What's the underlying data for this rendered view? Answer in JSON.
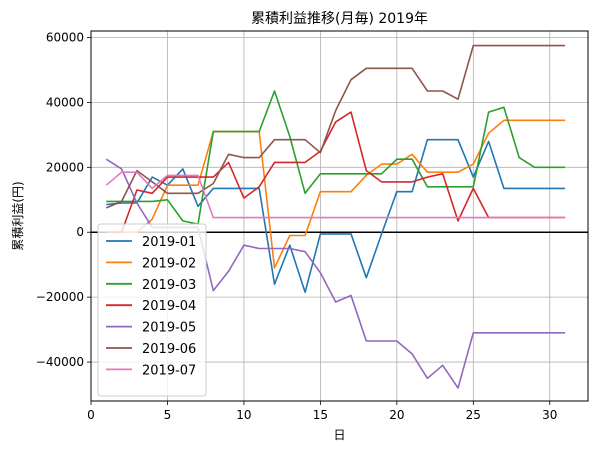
{
  "chart_data": {
    "type": "line",
    "title": "累積利益推移(月毎)  2019年",
    "xlabel": "日",
    "ylabel": "累積利益(円)",
    "xlim": [
      0,
      32.5
    ],
    "ylim": [
      -52000,
      62000
    ],
    "xticks": [
      0,
      5,
      10,
      15,
      20,
      25,
      30
    ],
    "yticks": [
      -40000,
      -20000,
      0,
      20000,
      40000,
      60000
    ],
    "ytick_labels": [
      "−40000",
      "−20000",
      "0",
      "20000",
      "40000",
      "60000"
    ],
    "grid": true,
    "zero_line": true,
    "legend_position": "lower-left",
    "x": [
      1,
      2,
      3,
      4,
      5,
      6,
      7,
      8,
      9,
      10,
      11,
      12,
      13,
      14,
      15,
      16,
      17,
      18,
      19,
      20,
      21,
      22,
      23,
      24,
      25,
      26,
      27,
      28,
      29,
      30,
      31
    ],
    "series": [
      {
        "name": "2019-01",
        "color": "#1f77b4",
        "values": [
          8500,
          9000,
          9000,
          17000,
          14500,
          19500,
          8000,
          13500,
          13500,
          13500,
          13500,
          -16000,
          -4000,
          -18500,
          -500,
          -500,
          -500,
          -14000,
          -500,
          12500,
          12500,
          28500,
          28500,
          28500,
          17000,
          28000,
          13500,
          13500,
          13500,
          13500,
          13500
        ]
      },
      {
        "name": "2019-02",
        "color": "#ff7f0e",
        "values": [
          0,
          0,
          0,
          4000,
          14500,
          14500,
          14500,
          31000,
          31000,
          31000,
          31000,
          -11000,
          -1000,
          -1000,
          12500,
          12500,
          12500,
          17500,
          21000,
          21000,
          24000,
          18500,
          18500,
          18500,
          21000,
          30500,
          34500,
          34500,
          34500,
          34500,
          34500
        ]
      },
      {
        "name": "2019-03",
        "color": "#2ca02c",
        "values": [
          9500,
          9500,
          9500,
          9500,
          10000,
          3500,
          2500,
          31000,
          31000,
          31000,
          31000,
          43500,
          29500,
          12000,
          18000,
          18000,
          18000,
          18000,
          18000,
          22500,
          22500,
          14000,
          14000,
          14000,
          14000,
          37000,
          38500,
          23000,
          20000,
          20000,
          20000
        ]
      },
      {
        "name": "2019-04",
        "color": "#d62728",
        "values": [
          0,
          0,
          13000,
          12000,
          17000,
          17000,
          17000,
          17000,
          21500,
          10500,
          14000,
          21500,
          21500,
          21500,
          25000,
          34000,
          37000,
          19000,
          15500,
          15500,
          15500,
          17000,
          18000,
          3500,
          13500,
          4500,
          4500,
          4500,
          4500,
          4500,
          4500
        ]
      },
      {
        "name": "2019-05",
        "color": "#9467bd",
        "values": [
          22500,
          19500,
          9000,
          1500,
          1500,
          1500,
          1500,
          -18000,
          -12000,
          -4000,
          -5000,
          -5000,
          -5000,
          -6000,
          -12500,
          -21500,
          -19500,
          -33500,
          -33500,
          -33500,
          -37500,
          -45000,
          -41000,
          -48000,
          -31000,
          -31000,
          -31000,
          -31000,
          -31000,
          -31000,
          -31000
        ]
      },
      {
        "name": "2019-06",
        "color": "#8c564b",
        "values": [
          7500,
          9500,
          19000,
          15500,
          12000,
          12000,
          12000,
          15000,
          24000,
          23000,
          23000,
          28500,
          28500,
          28500,
          24500,
          37500,
          47000,
          50500,
          50500,
          50500,
          50500,
          43500,
          43500,
          41000,
          57500,
          57500,
          57500,
          57500,
          57500,
          57500,
          57500
        ]
      },
      {
        "name": "2019-07",
        "color": "#e377c2",
        "values": [
          14500,
          18500,
          18500,
          13500,
          17500,
          17500,
          17500,
          4500,
          4500,
          4500,
          4500,
          4500,
          4500,
          4500,
          4500,
          4500,
          4500,
          4500,
          4500,
          4500,
          4500,
          4500,
          4500,
          4500,
          4500,
          4500,
          4500,
          4500,
          4500,
          4500,
          4500
        ]
      }
    ]
  }
}
